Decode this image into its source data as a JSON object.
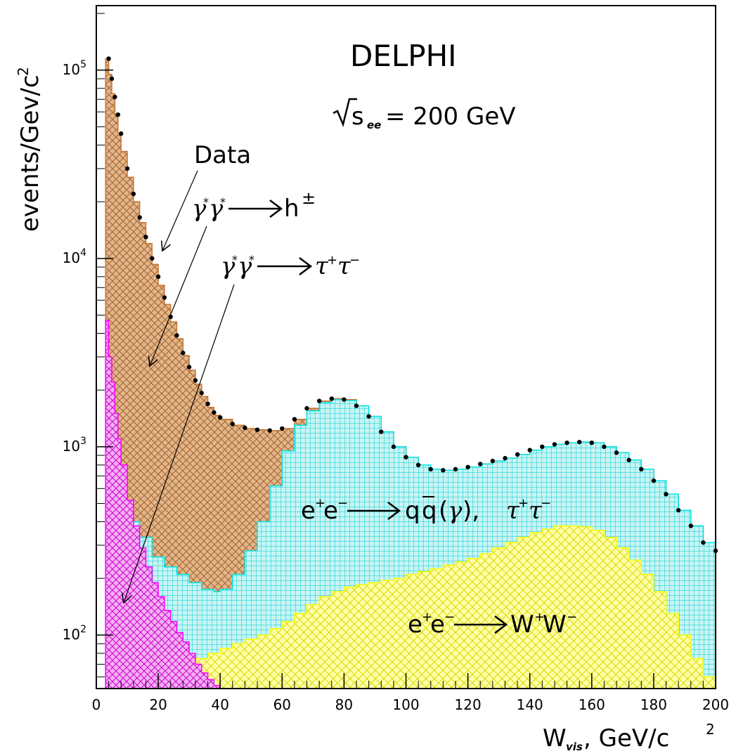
{
  "chart_data": {
    "type": "area",
    "title": "DELPHI",
    "subtitle": "√s_ee = 200 GeV",
    "xlabel": "W_vis, GeV/c²",
    "ylabel": "events/Gev/c²",
    "xlim": [
      0,
      200
    ],
    "ylim": [
      52,
      220000
    ],
    "yscale": "log",
    "grid": false,
    "x_ticks": [
      0,
      20,
      40,
      60,
      80,
      100,
      120,
      140,
      160,
      180,
      200
    ],
    "y_ticks": [
      {
        "value": 100,
        "base": "10",
        "exp": "2"
      },
      {
        "value": 1000,
        "base": "10",
        "exp": "3"
      },
      {
        "value": 10000,
        "base": "10",
        "exp": "4"
      },
      {
        "value": 100000,
        "base": "10",
        "exp": "5"
      }
    ],
    "annotations": {
      "data": "Data",
      "hh": "γ*γ* → h±",
      "tautau": "γ*γ* → τ+τ−",
      "qq": "e+e− → qq̄(γ), τ+τ−",
      "ww": "e+e− → W+W−"
    },
    "series": [
      {
        "name": "e+e− → W+W−",
        "color": "#ffff00",
        "x": [
          4,
          8,
          12,
          16,
          20,
          24,
          28,
          32,
          36,
          40,
          44,
          48,
          52,
          56,
          60,
          64,
          68,
          72,
          76,
          80,
          84,
          88,
          92,
          96,
          100,
          104,
          108,
          112,
          116,
          120,
          124,
          128,
          132,
          136,
          140,
          144,
          148,
          152,
          156,
          160,
          164,
          168,
          172,
          176,
          180,
          184,
          188,
          192,
          196,
          200
        ],
        "y": [
          52,
          52,
          52,
          52,
          52,
          60,
          68,
          75,
          80,
          85,
          90,
          95,
          100,
          108,
          118,
          130,
          145,
          160,
          170,
          180,
          185,
          190,
          195,
          200,
          210,
          218,
          225,
          235,
          245,
          255,
          270,
          290,
          310,
          330,
          350,
          365,
          380,
          380,
          375,
          360,
          330,
          290,
          250,
          210,
          170,
          130,
          100,
          75,
          60,
          52
        ]
      },
      {
        "name": "e+e− → qq̄(γ), τ+τ−",
        "color": "#00e5e5",
        "x": [
          4,
          6,
          8,
          10,
          14,
          18,
          22,
          26,
          30,
          34,
          38,
          40,
          44,
          48,
          52,
          56,
          60,
          64,
          68,
          72,
          76,
          80,
          84,
          88,
          92,
          96,
          100,
          104,
          108,
          112,
          116,
          120,
          124,
          128,
          132,
          136,
          140,
          144,
          148,
          152,
          156,
          160,
          164,
          168,
          172,
          176,
          180,
          184,
          188,
          192,
          196,
          200
        ],
        "y": [
          600,
          520,
          460,
          400,
          330,
          260,
          230,
          210,
          190,
          175,
          170,
          175,
          210,
          280,
          400,
          620,
          950,
          1300,
          1550,
          1720,
          1780,
          1760,
          1650,
          1450,
          1200,
          1000,
          880,
          800,
          760,
          750,
          760,
          780,
          810,
          840,
          870,
          910,
          960,
          1000,
          1030,
          1050,
          1060,
          1050,
          1000,
          930,
          850,
          760,
          660,
          560,
          460,
          380,
          310,
          280
        ]
      },
      {
        "name": "γ*γ* → h±",
        "color": "#c87533",
        "x": [
          3,
          4,
          5,
          6,
          7,
          8,
          10,
          12,
          14,
          16,
          18,
          20,
          22,
          24,
          26,
          28,
          30,
          32,
          34,
          36,
          38,
          40,
          44,
          48,
          52,
          56,
          60,
          64,
          68,
          72,
          76,
          80,
          84,
          88,
          92,
          96,
          100,
          104,
          108,
          112,
          116,
          120,
          124,
          128,
          132,
          136,
          140,
          144,
          148,
          152,
          156,
          160,
          164,
          168,
          172,
          176,
          180,
          184,
          188,
          192,
          196,
          200
        ],
        "y": [
          115000,
          95000,
          75000,
          58000,
          45000,
          37000,
          27000,
          20000,
          15500,
          12000,
          9300,
          7200,
          5700,
          4600,
          3750,
          3050,
          2550,
          2150,
          1850,
          1620,
          1470,
          1400,
          1300,
          1250,
          1230,
          1220,
          1250,
          1400,
          1600,
          1750,
          1800,
          1780,
          1650,
          1450,
          1200,
          1000,
          880,
          800,
          760,
          750,
          760,
          780,
          810,
          840,
          870,
          910,
          960,
          1000,
          1030,
          1050,
          1060,
          1050,
          1000,
          930,
          850,
          760,
          660,
          560,
          460,
          380,
          310,
          280
        ]
      },
      {
        "name": "γ*γ* → τ+τ−",
        "color": "#ff00ff",
        "x": [
          3,
          4,
          5,
          6,
          7,
          8,
          10,
          12,
          14,
          16,
          18,
          20,
          22,
          24,
          26,
          28,
          30,
          32,
          34,
          36,
          38,
          40
        ],
        "y": [
          4700,
          3000,
          2200,
          1500,
          1100,
          800,
          520,
          380,
          290,
          230,
          190,
          160,
          135,
          118,
          103,
          92,
          80,
          70,
          63,
          58,
          54,
          52
        ]
      },
      {
        "name": "Data",
        "color": "#000000",
        "x": [
          4,
          5,
          6,
          7,
          8,
          10,
          12,
          14,
          16,
          18,
          20,
          22,
          24,
          26,
          28,
          30,
          32,
          34,
          36,
          38,
          40,
          44,
          48,
          52,
          56,
          60,
          64,
          68,
          72,
          76,
          80,
          84,
          88,
          92,
          96,
          100,
          104,
          108,
          112,
          116,
          120,
          124,
          128,
          132,
          136,
          140,
          144,
          148,
          152,
          156,
          160,
          164,
          168,
          172,
          176,
          180,
          184,
          188,
          192,
          196,
          200
        ],
        "y": [
          115000,
          90000,
          72000,
          58000,
          46000,
          30000,
          22000,
          16500,
          13000,
          10000,
          8000,
          6200,
          4900,
          3900,
          3150,
          2650,
          2250,
          1930,
          1690,
          1520,
          1430,
          1320,
          1260,
          1230,
          1220,
          1250,
          1400,
          1600,
          1750,
          1800,
          1780,
          1650,
          1450,
          1200,
          1000,
          880,
          800,
          760,
          750,
          760,
          780,
          810,
          840,
          870,
          910,
          960,
          1000,
          1030,
          1050,
          1060,
          1050,
          1000,
          930,
          850,
          760,
          660,
          560,
          460,
          380,
          310,
          280
        ]
      }
    ]
  }
}
